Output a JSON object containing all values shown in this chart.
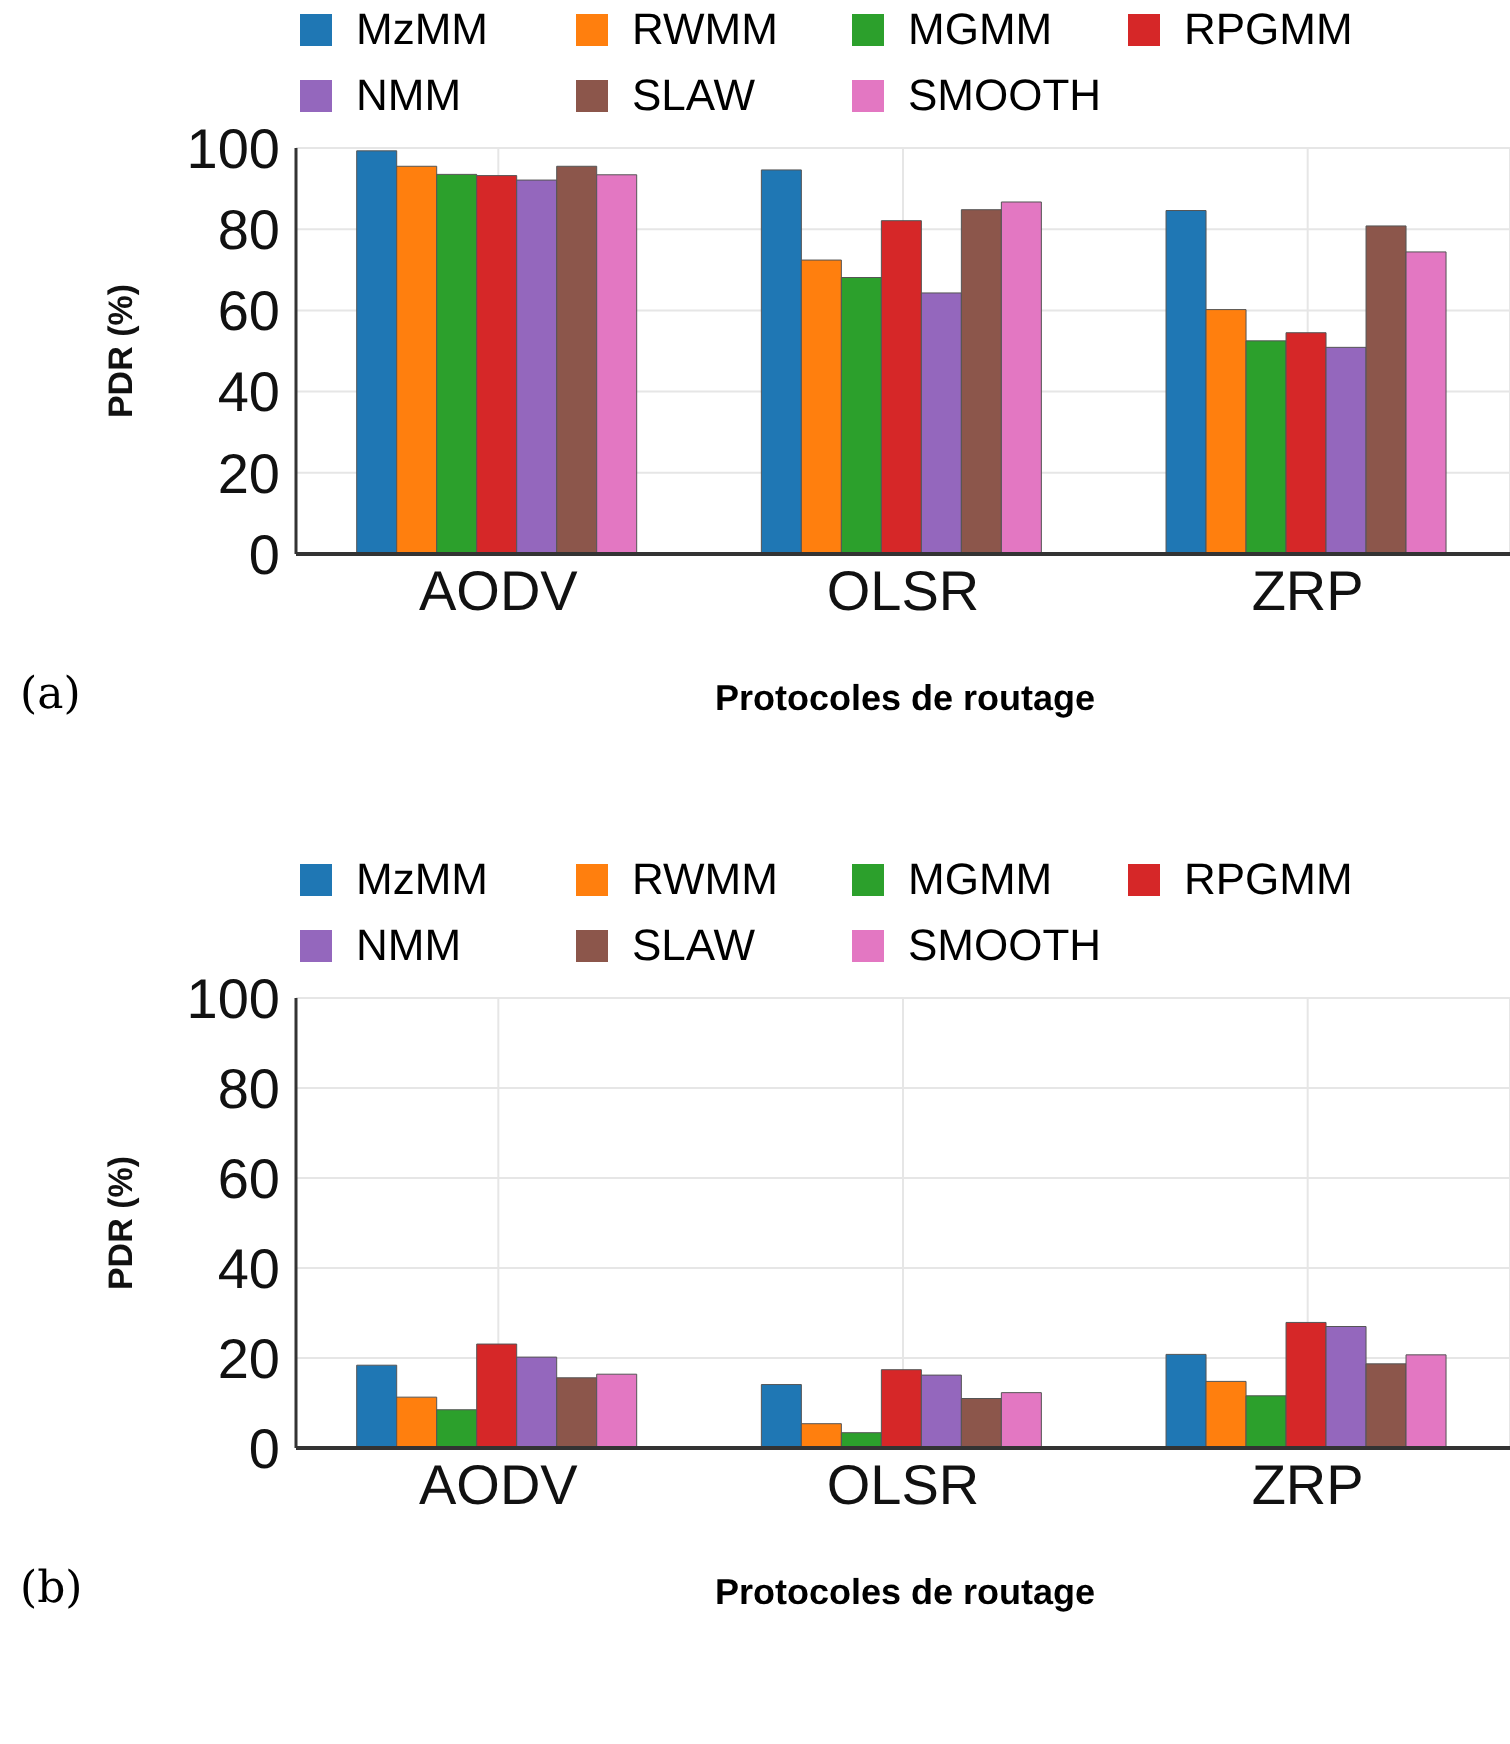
{
  "chart_data": [
    {
      "type": "bar",
      "categories": [
        "AODV",
        "OLSR",
        "ZRP"
      ],
      "ylabel": "PDR (%)",
      "xlabel": "Protocoles de routage",
      "ylim": [
        0,
        100
      ],
      "yticks": [
        0,
        20,
        40,
        60,
        80,
        100
      ],
      "grid": true,
      "legend": "top",
      "annotations": [
        "(a)"
      ],
      "series": [
        {
          "name": "MzMM",
          "color": "#1f77b4",
          "values": [
            99.3,
            94.6,
            84.6
          ]
        },
        {
          "name": "RWMM",
          "color": "#ff7f0e",
          "values": [
            95.5,
            72.4,
            60.2
          ]
        },
        {
          "name": "MGMM",
          "color": "#2ca02c",
          "values": [
            93.5,
            68.1,
            52.5
          ]
        },
        {
          "name": "RPGMM",
          "color": "#d62728",
          "values": [
            93.2,
            82.1,
            54.5
          ]
        },
        {
          "name": "NMM",
          "color": "#9467bd",
          "values": [
            92.1,
            64.3,
            50.9
          ]
        },
        {
          "name": "SLAW",
          "color": "#8c564b",
          "values": [
            95.5,
            84.8,
            80.8
          ]
        },
        {
          "name": "SMOOTH",
          "color": "#e377c2",
          "values": [
            93.4,
            86.7,
            74.4
          ]
        }
      ]
    },
    {
      "type": "bar",
      "categories": [
        "AODV",
        "OLSR",
        "ZRP"
      ],
      "ylabel": "PDR (%)",
      "xlabel": "Protocoles de routage",
      "ylim": [
        0,
        100
      ],
      "yticks": [
        0,
        20,
        40,
        60,
        80,
        100
      ],
      "grid": true,
      "legend": "top",
      "annotations": [
        "(b)"
      ],
      "series": [
        {
          "name": "MzMM",
          "color": "#1f77b4",
          "values": [
            18.4,
            14.1,
            20.8
          ]
        },
        {
          "name": "RWMM",
          "color": "#ff7f0e",
          "values": [
            11.3,
            5.4,
            14.8
          ]
        },
        {
          "name": "MGMM",
          "color": "#2ca02c",
          "values": [
            8.5,
            3.4,
            11.6
          ]
        },
        {
          "name": "RPGMM",
          "color": "#d62728",
          "values": [
            23.1,
            17.4,
            27.9
          ]
        },
        {
          "name": "NMM",
          "color": "#9467bd",
          "values": [
            20.2,
            16.2,
            27.0
          ]
        },
        {
          "name": "SLAW",
          "color": "#8c564b",
          "values": [
            15.6,
            11.0,
            18.7
          ]
        },
        {
          "name": "SMOOTH",
          "color": "#e377c2",
          "values": [
            16.4,
            12.3,
            20.7
          ]
        }
      ]
    }
  ]
}
